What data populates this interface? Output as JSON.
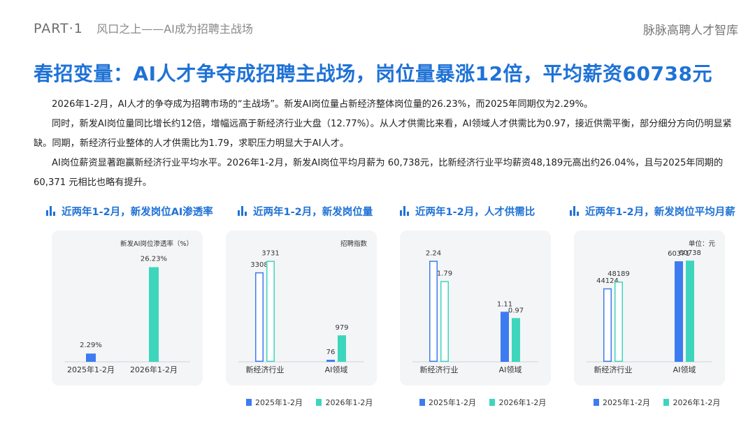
{
  "header": {
    "part": "PART·1",
    "subtitle": "风口之上——AI成为招聘主战场",
    "brand": "脉脉高聘人才智库"
  },
  "title": "春招变量：AI人才争夺成招聘主战场，岗位量暴涨12倍，平均薪资60738元",
  "paragraphs": [
    "2026年1-2月，AI人才的争夺成为招聘市场的“主战场”。新发AI岗位量占新经济整体岗位量的26.23%，而2025年同期仅为2.29%。",
    "同时，新发AI岗位量同比增长约12倍，增幅远高于新经济行业大盘（12.77%）。从人才供需比来看，AI领域人才供需比为0.97，接近供需平衡，部分细分方向仍明显紧缺。同期，新经济行业整体的人才供需比为1.79，求职压力明显大于AI人才。",
    "AI岗位薪资显著跑赢新经济行业平均水平。2026年1-2月，新发AI岗位平均月薪为 60,738元，比新经济行业平均薪资48,189元高出约26.04%，且与2025年同期的60,371 元相比也略有提升。"
  ],
  "colors": {
    "accent": "#1f72d6",
    "series2025": "#3d7bf0",
    "series2026": "#3dd6bd"
  },
  "legend": {
    "s2025": "2025年1-2月",
    "s2026": "2026年1-2月"
  },
  "chart_data": [
    {
      "type": "bar",
      "title": "近两年1-2月，新发岗位AI渗透率",
      "unit_label": "新发AI岗位渗透率（%）",
      "categories": [
        "2025年1-2月",
        "2026年1-2月"
      ],
      "values": [
        2.29,
        26.23
      ],
      "value_labels": [
        "2.29%",
        "26.23%"
      ],
      "ylim": [
        0,
        30
      ]
    },
    {
      "type": "bar",
      "title": "近两年1-2月，新发岗位量",
      "unit_label": "招聘指数",
      "categories": [
        "新经济行业",
        "AI领域"
      ],
      "series": [
        {
          "name": "2025年1-2月",
          "values": [
            3308,
            76
          ]
        },
        {
          "name": "2026年1-2月",
          "values": [
            3731,
            979
          ]
        }
      ],
      "ylim": [
        0,
        4000
      ]
    },
    {
      "type": "bar",
      "title": "近两年1-2月，人才供需比",
      "unit_label": "",
      "categories": [
        "新经济行业",
        "AI领域"
      ],
      "series": [
        {
          "name": "2025年1-2月",
          "values": [
            2.24,
            1.11
          ]
        },
        {
          "name": "2026年1-2月",
          "values": [
            1.79,
            0.97
          ]
        }
      ],
      "ylim": [
        0,
        2.4
      ]
    },
    {
      "type": "bar",
      "title": "近两年1-2月，新发岗位平均月薪",
      "unit_label": "单位：元",
      "categories": [
        "新经济行业",
        "AI领域"
      ],
      "series": [
        {
          "name": "2025年1-2月",
          "values": [
            44124,
            60371
          ]
        },
        {
          "name": "2026年1-2月",
          "values": [
            48189,
            60738
          ]
        }
      ],
      "ylim": [
        0,
        65000
      ]
    }
  ]
}
